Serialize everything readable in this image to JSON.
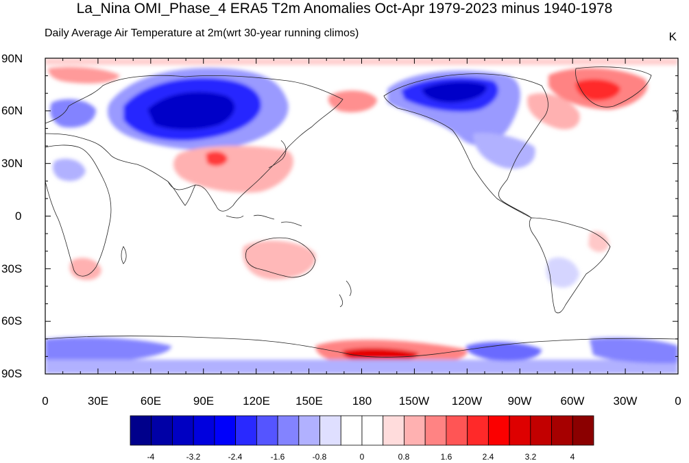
{
  "title": "La_Nina OMI_Phase_4 ERA5 T2m Anomalies Oct-Apr 1979-2023 minus 1940-1978",
  "subtitle": "Daily Average Air Temperature at 2m(wrt 30-year running climos)",
  "units": "K",
  "lat_labels": [
    "90N",
    "60N",
    "30N",
    "0",
    "30S",
    "60S",
    "90S"
  ],
  "lon_labels": [
    "0",
    "30E",
    "60E",
    "90E",
    "120E",
    "150E",
    "180",
    "150W",
    "120W",
    "90W",
    "60W",
    "30W",
    "0"
  ],
  "colorbar": {
    "labels": [
      "-4",
      "-3.2",
      "-2.4",
      "-1.6",
      "-0.8",
      "0",
      "0.8",
      "1.6",
      "2.4",
      "3.2",
      "4"
    ],
    "colors": [
      "#00008b",
      "#0000a6",
      "#0000c2",
      "#0000de",
      "#0000fb",
      "#2929ff",
      "#5555ff",
      "#8383ff",
      "#b1b1ff",
      "#dfdfff",
      "#ffffff",
      "#ffffff",
      "#ffdcdc",
      "#ffb1b1",
      "#ff8383",
      "#ff5555",
      "#ff2929",
      "#fb0000",
      "#de0000",
      "#c20000",
      "#a60000",
      "#8b0000"
    ]
  }
}
